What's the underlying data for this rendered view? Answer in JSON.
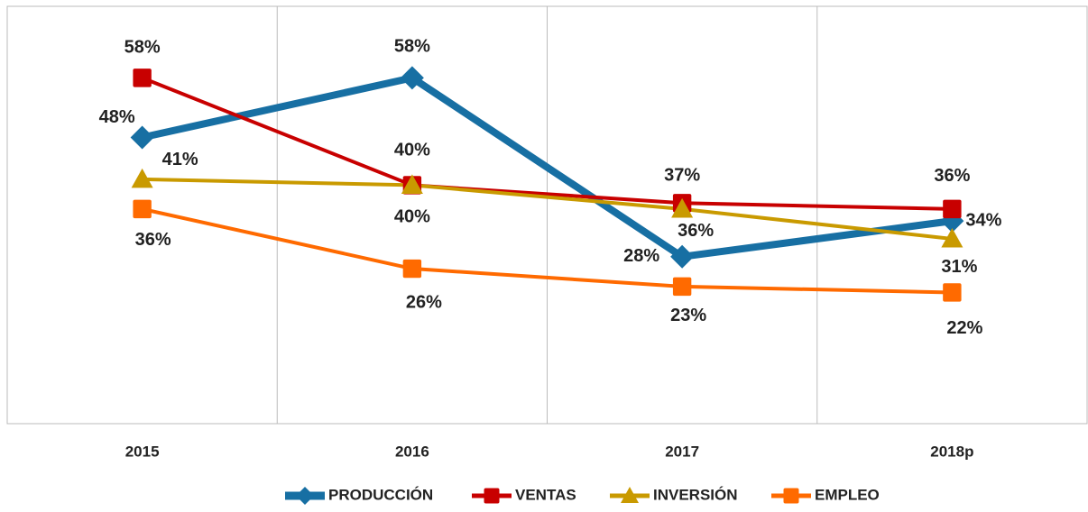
{
  "chart_data": {
    "type": "line",
    "categories": [
      "2015",
      "2016",
      "2017",
      "2018p"
    ],
    "series": [
      {
        "name": "PRODUCCIÓN",
        "color": "#176fa3",
        "marker": "diamond",
        "values": [
          48,
          58,
          28,
          34
        ],
        "value_labels": [
          "48%",
          "58%",
          "28%",
          "34%"
        ]
      },
      {
        "name": "VENTAS",
        "color": "#c80000",
        "marker": "square",
        "values": [
          58,
          40,
          37,
          36
        ],
        "value_labels": [
          "58%",
          "40%",
          "37%",
          "36%"
        ]
      },
      {
        "name": "INVERSIÓN",
        "color": "#c99a00",
        "marker": "triangle",
        "values": [
          41,
          40,
          36,
          31
        ],
        "value_labels": [
          "41%",
          "40%",
          "36%",
          "31%"
        ]
      },
      {
        "name": "EMPLEO",
        "color": "#ff6a00",
        "marker": "square",
        "values": [
          36,
          26,
          23,
          22
        ],
        "value_labels": [
          "36%",
          "26%",
          "23%",
          "22%"
        ]
      }
    ],
    "ylim": [
      0,
      70
    ],
    "legend": "bottom"
  }
}
